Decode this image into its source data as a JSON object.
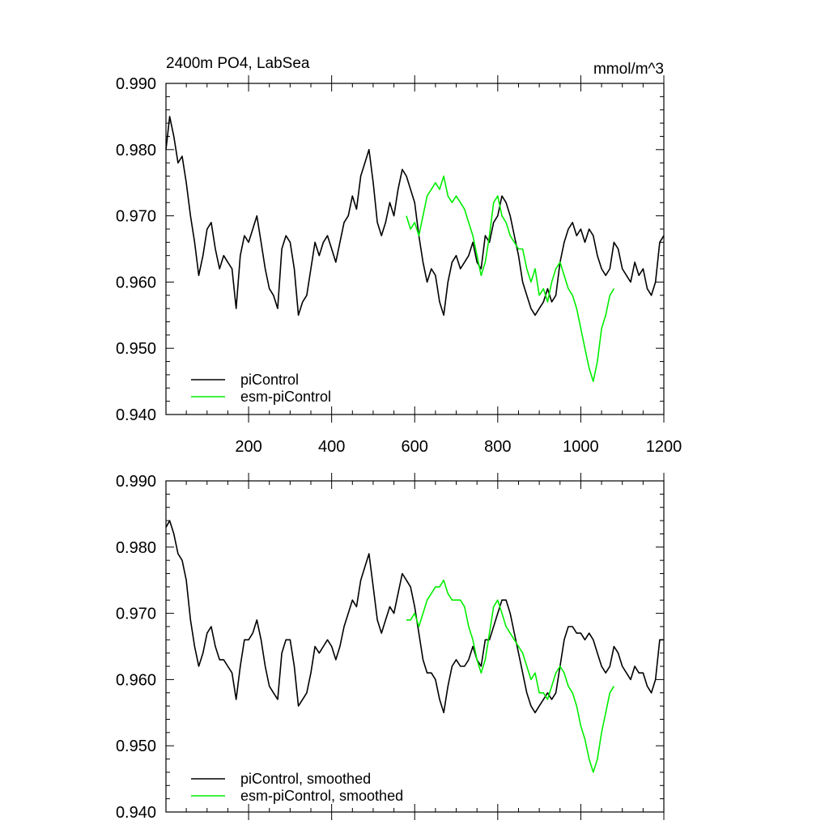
{
  "chart_data": [
    {
      "type": "line",
      "title": "2400m PO4, LabSea",
      "units_label": "mmol/m^3",
      "xlim": [
        1,
        1200
      ],
      "ylim": [
        0.94,
        0.99
      ],
      "x_tick_labels": [
        "200",
        "400",
        "600",
        "800",
        "1000",
        "1200"
      ],
      "y_tick_labels": [
        "0.940",
        "0.950",
        "0.960",
        "0.970",
        "0.980",
        "0.990"
      ],
      "series": [
        {
          "name": "piControl",
          "color": "#000000",
          "x": [
            1,
            10,
            20,
            30,
            40,
            50,
            60,
            70,
            80,
            90,
            100,
            110,
            120,
            130,
            140,
            150,
            160,
            170,
            180,
            190,
            200,
            210,
            220,
            230,
            240,
            250,
            260,
            270,
            280,
            290,
            300,
            310,
            320,
            330,
            340,
            350,
            360,
            370,
            380,
            390,
            400,
            410,
            420,
            430,
            440,
            450,
            460,
            470,
            480,
            490,
            500,
            510,
            520,
            530,
            540,
            550,
            560,
            570,
            580,
            590,
            600,
            610,
            620,
            630,
            640,
            650,
            660,
            670,
            680,
            690,
            700,
            710,
            720,
            730,
            740,
            750,
            760,
            770,
            780,
            790,
            800,
            810,
            820,
            830,
            840,
            850,
            860,
            870,
            880,
            890,
            900,
            910,
            920,
            930,
            940,
            950,
            960,
            970,
            980,
            990,
            1000,
            1010,
            1020,
            1030,
            1040,
            1050,
            1060,
            1070,
            1080,
            1090,
            1100,
            1110,
            1120,
            1130,
            1140,
            1150,
            1160,
            1170,
            1180,
            1190,
            1200
          ],
          "y": [
            0.98,
            0.985,
            0.982,
            0.978,
            0.979,
            0.975,
            0.97,
            0.966,
            0.961,
            0.964,
            0.968,
            0.969,
            0.965,
            0.962,
            0.964,
            0.963,
            0.962,
            0.956,
            0.964,
            0.967,
            0.966,
            0.968,
            0.97,
            0.966,
            0.962,
            0.959,
            0.958,
            0.956,
            0.965,
            0.967,
            0.966,
            0.962,
            0.955,
            0.957,
            0.958,
            0.962,
            0.966,
            0.964,
            0.966,
            0.967,
            0.965,
            0.963,
            0.966,
            0.969,
            0.97,
            0.973,
            0.971,
            0.976,
            0.978,
            0.98,
            0.975,
            0.969,
            0.967,
            0.969,
            0.972,
            0.97,
            0.974,
            0.977,
            0.976,
            0.974,
            0.972,
            0.967,
            0.963,
            0.96,
            0.962,
            0.961,
            0.957,
            0.955,
            0.96,
            0.963,
            0.964,
            0.962,
            0.963,
            0.964,
            0.966,
            0.963,
            0.962,
            0.967,
            0.966,
            0.969,
            0.97,
            0.973,
            0.972,
            0.97,
            0.967,
            0.964,
            0.96,
            0.958,
            0.956,
            0.955,
            0.956,
            0.957,
            0.959,
            0.957,
            0.958,
            0.963,
            0.966,
            0.968,
            0.969,
            0.967,
            0.968,
            0.966,
            0.968,
            0.967,
            0.964,
            0.962,
            0.961,
            0.962,
            0.966,
            0.965,
            0.962,
            0.961,
            0.96,
            0.963,
            0.961,
            0.962,
            0.959,
            0.958,
            0.96,
            0.966,
            0.967
          ]
        },
        {
          "name": "esm-piControl",
          "color": "#00ee00",
          "x": [
            580,
            590,
            600,
            610,
            620,
            630,
            640,
            650,
            660,
            670,
            680,
            690,
            700,
            710,
            720,
            730,
            740,
            750,
            760,
            770,
            780,
            790,
            800,
            810,
            820,
            830,
            840,
            850,
            860,
            870,
            880,
            890,
            900,
            910,
            920,
            930,
            940,
            950,
            960,
            970,
            980,
            990,
            1000,
            1010,
            1020,
            1030,
            1040,
            1050,
            1060,
            1070,
            1080
          ],
          "y": [
            0.97,
            0.968,
            0.969,
            0.967,
            0.97,
            0.973,
            0.974,
            0.975,
            0.974,
            0.976,
            0.973,
            0.972,
            0.973,
            0.972,
            0.971,
            0.969,
            0.967,
            0.964,
            0.961,
            0.963,
            0.967,
            0.972,
            0.973,
            0.97,
            0.969,
            0.967,
            0.966,
            0.965,
            0.965,
            0.962,
            0.96,
            0.962,
            0.958,
            0.959,
            0.957,
            0.96,
            0.962,
            0.963,
            0.961,
            0.959,
            0.958,
            0.956,
            0.953,
            0.95,
            0.947,
            0.945,
            0.948,
            0.953,
            0.955,
            0.958,
            0.959
          ]
        }
      ]
    },
    {
      "type": "line",
      "xlim": [
        1,
        1200
      ],
      "ylim": [
        0.94,
        0.99
      ],
      "x_tick_labels": [],
      "y_tick_labels": [
        "0.940",
        "0.950",
        "0.960",
        "0.970",
        "0.980",
        "0.990"
      ],
      "series": [
        {
          "name": "piControl, smoothed",
          "color": "#000000",
          "x": [
            1,
            10,
            20,
            30,
            40,
            50,
            60,
            70,
            80,
            90,
            100,
            110,
            120,
            130,
            140,
            150,
            160,
            170,
            180,
            190,
            200,
            210,
            220,
            230,
            240,
            250,
            260,
            270,
            280,
            290,
            300,
            310,
            320,
            330,
            340,
            350,
            360,
            370,
            380,
            390,
            400,
            410,
            420,
            430,
            440,
            450,
            460,
            470,
            480,
            490,
            500,
            510,
            520,
            530,
            540,
            550,
            560,
            570,
            580,
            590,
            600,
            610,
            620,
            630,
            640,
            650,
            660,
            670,
            680,
            690,
            700,
            710,
            720,
            730,
            740,
            750,
            760,
            770,
            780,
            790,
            800,
            810,
            820,
            830,
            840,
            850,
            860,
            870,
            880,
            890,
            900,
            910,
            920,
            930,
            940,
            950,
            960,
            970,
            980,
            990,
            1000,
            1010,
            1020,
            1030,
            1040,
            1050,
            1060,
            1070,
            1080,
            1090,
            1100,
            1110,
            1120,
            1130,
            1140,
            1150,
            1160,
            1170,
            1180,
            1190,
            1200
          ],
          "y": [
            0.983,
            0.984,
            0.982,
            0.979,
            0.978,
            0.975,
            0.969,
            0.965,
            0.962,
            0.964,
            0.967,
            0.968,
            0.965,
            0.963,
            0.963,
            0.962,
            0.961,
            0.957,
            0.962,
            0.966,
            0.966,
            0.967,
            0.969,
            0.966,
            0.962,
            0.959,
            0.958,
            0.957,
            0.964,
            0.966,
            0.966,
            0.962,
            0.956,
            0.957,
            0.958,
            0.961,
            0.965,
            0.964,
            0.965,
            0.966,
            0.965,
            0.963,
            0.965,
            0.968,
            0.97,
            0.972,
            0.971,
            0.975,
            0.977,
            0.979,
            0.974,
            0.969,
            0.967,
            0.969,
            0.971,
            0.97,
            0.973,
            0.976,
            0.975,
            0.974,
            0.971,
            0.967,
            0.963,
            0.961,
            0.961,
            0.96,
            0.957,
            0.955,
            0.959,
            0.962,
            0.963,
            0.962,
            0.962,
            0.963,
            0.965,
            0.963,
            0.962,
            0.966,
            0.966,
            0.968,
            0.97,
            0.972,
            0.972,
            0.97,
            0.967,
            0.964,
            0.961,
            0.958,
            0.956,
            0.955,
            0.956,
            0.957,
            0.958,
            0.957,
            0.958,
            0.962,
            0.966,
            0.968,
            0.968,
            0.967,
            0.967,
            0.966,
            0.967,
            0.966,
            0.964,
            0.962,
            0.961,
            0.962,
            0.965,
            0.964,
            0.962,
            0.961,
            0.96,
            0.962,
            0.961,
            0.961,
            0.959,
            0.958,
            0.96,
            0.966,
            0.966
          ]
        },
        {
          "name": "esm-piControl, smoothed",
          "color": "#00ee00",
          "x": [
            580,
            590,
            600,
            610,
            620,
            630,
            640,
            650,
            660,
            670,
            680,
            690,
            700,
            710,
            720,
            730,
            740,
            750,
            760,
            770,
            780,
            790,
            800,
            810,
            820,
            830,
            840,
            850,
            860,
            870,
            880,
            890,
            900,
            910,
            920,
            930,
            940,
            950,
            960,
            970,
            980,
            990,
            1000,
            1010,
            1020,
            1030,
            1040,
            1050,
            1060,
            1070,
            1080
          ],
          "y": [
            0.969,
            0.969,
            0.97,
            0.968,
            0.97,
            0.972,
            0.973,
            0.974,
            0.974,
            0.975,
            0.973,
            0.972,
            0.972,
            0.972,
            0.971,
            0.968,
            0.966,
            0.963,
            0.961,
            0.963,
            0.967,
            0.971,
            0.972,
            0.97,
            0.968,
            0.967,
            0.966,
            0.965,
            0.964,
            0.962,
            0.96,
            0.961,
            0.958,
            0.958,
            0.957,
            0.959,
            0.961,
            0.962,
            0.961,
            0.959,
            0.958,
            0.956,
            0.953,
            0.951,
            0.948,
            0.946,
            0.948,
            0.952,
            0.955,
            0.958,
            0.959
          ]
        }
      ]
    }
  ]
}
